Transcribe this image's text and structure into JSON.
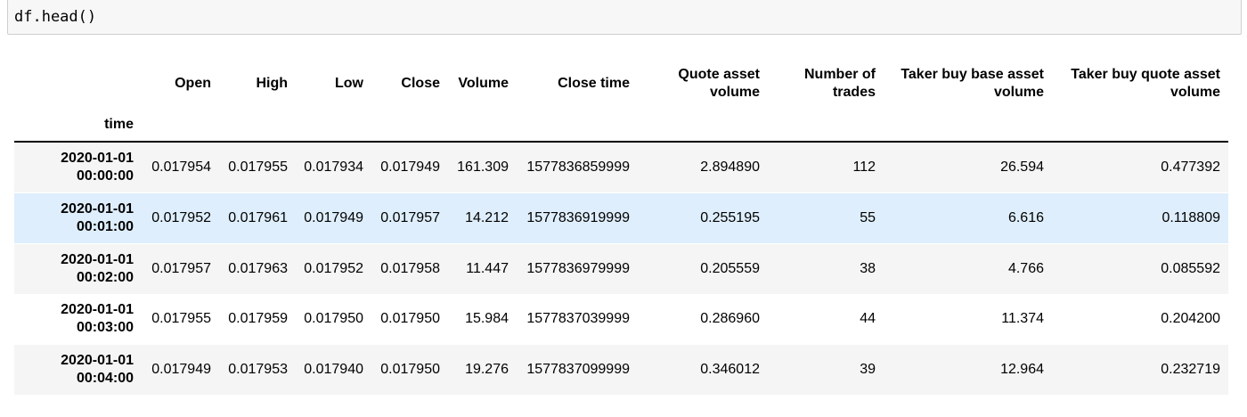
{
  "code_cell": {
    "source": "df.head()"
  },
  "table": {
    "index_name": "time",
    "columns": [
      {
        "line1": "Open",
        "line2": ""
      },
      {
        "line1": "High",
        "line2": ""
      },
      {
        "line1": "Low",
        "line2": ""
      },
      {
        "line1": "Close",
        "line2": ""
      },
      {
        "line1": "Volume",
        "line2": ""
      },
      {
        "line1": "Close time",
        "line2": ""
      },
      {
        "line1": "Quote asset",
        "line2": "volume"
      },
      {
        "line1": "Number of",
        "line2": "trades"
      },
      {
        "line1": "Taker buy base asset",
        "line2": "volume"
      },
      {
        "line1": "Taker buy quote asset",
        "line2": "volume"
      }
    ],
    "rows": [
      {
        "date": "2020-01-01",
        "time": "00:00:00",
        "cells": [
          "0.017954",
          "0.017955",
          "0.017934",
          "0.017949",
          "161.309",
          "1577836859999",
          "2.894890",
          "112",
          "26.594",
          "0.477392"
        ]
      },
      {
        "date": "2020-01-01",
        "time": "00:01:00",
        "cells": [
          "0.017952",
          "0.017961",
          "0.017949",
          "0.017957",
          "14.212",
          "1577836919999",
          "0.255195",
          "55",
          "6.616",
          "0.118809"
        ]
      },
      {
        "date": "2020-01-01",
        "time": "00:02:00",
        "cells": [
          "0.017957",
          "0.017963",
          "0.017952",
          "0.017958",
          "11.447",
          "1577836979999",
          "0.205559",
          "38",
          "4.766",
          "0.085592"
        ]
      },
      {
        "date": "2020-01-01",
        "time": "00:03:00",
        "cells": [
          "0.017955",
          "0.017959",
          "0.017950",
          "0.017950",
          "15.984",
          "1577837039999",
          "0.286960",
          "44",
          "11.374",
          "0.204200"
        ]
      },
      {
        "date": "2020-01-01",
        "time": "00:04:00",
        "cells": [
          "0.017949",
          "0.017953",
          "0.017940",
          "0.017950",
          "19.276",
          "1577837099999",
          "0.346012",
          "39",
          "12.964",
          "0.232719"
        ]
      }
    ],
    "hovered_row_index": 1,
    "colors": {
      "striped_row": "#f5f5f5",
      "hover_row": "#deeefc",
      "header_rule": "#000000"
    }
  }
}
